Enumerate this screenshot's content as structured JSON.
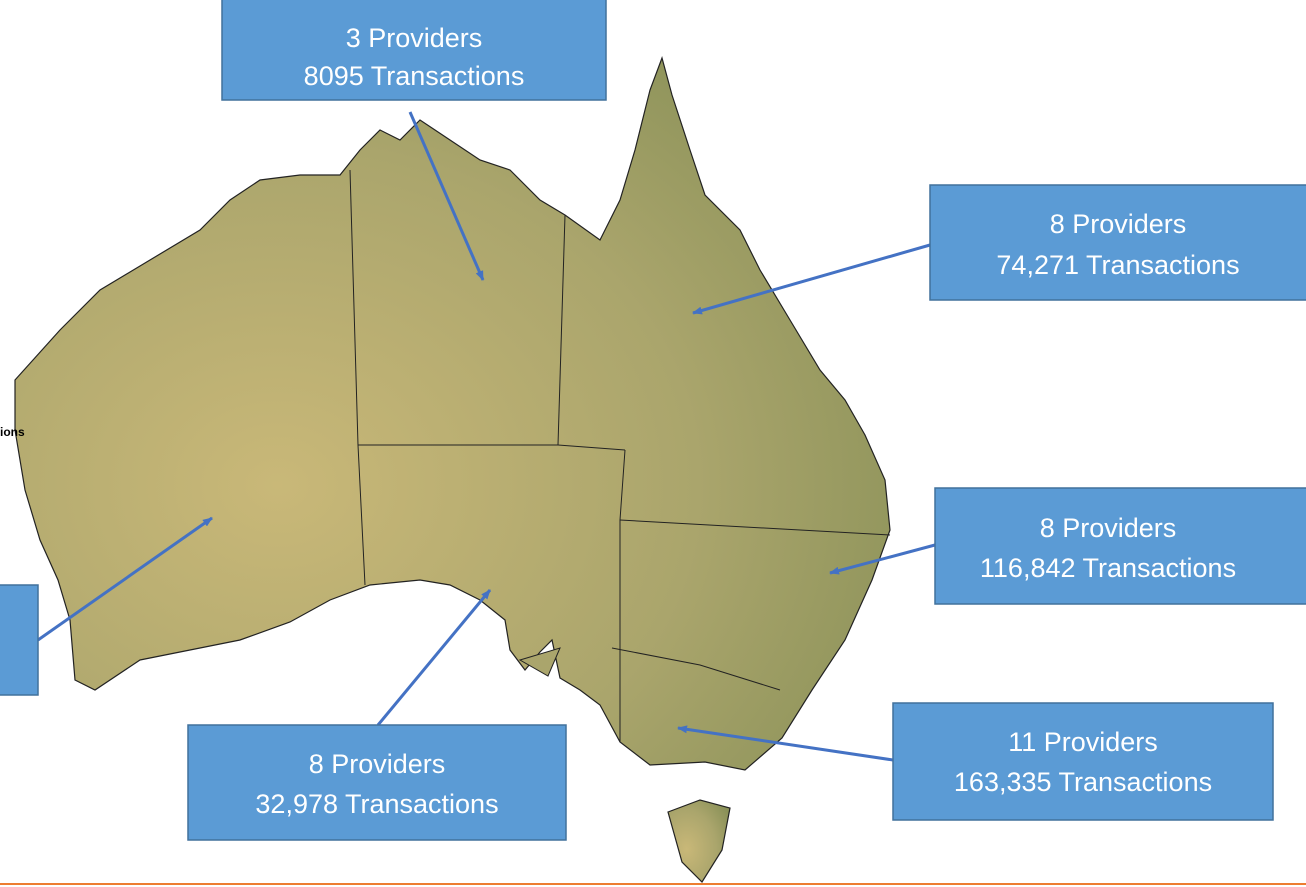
{
  "map": {
    "partial_label": "ions",
    "callouts": [
      {
        "providers": "3 Providers",
        "transactions": "8095 Transactions"
      },
      {
        "providers": "8 Providers",
        "transactions": "74,271 Transactions"
      },
      {
        "providers": "8 Providers",
        "transactions": "116,842 Transactions"
      },
      {
        "providers": "11 Providers",
        "transactions": "163,335 Transactions"
      },
      {
        "providers": "8 Providers",
        "transactions": "32,978 Transactions"
      }
    ]
  }
}
